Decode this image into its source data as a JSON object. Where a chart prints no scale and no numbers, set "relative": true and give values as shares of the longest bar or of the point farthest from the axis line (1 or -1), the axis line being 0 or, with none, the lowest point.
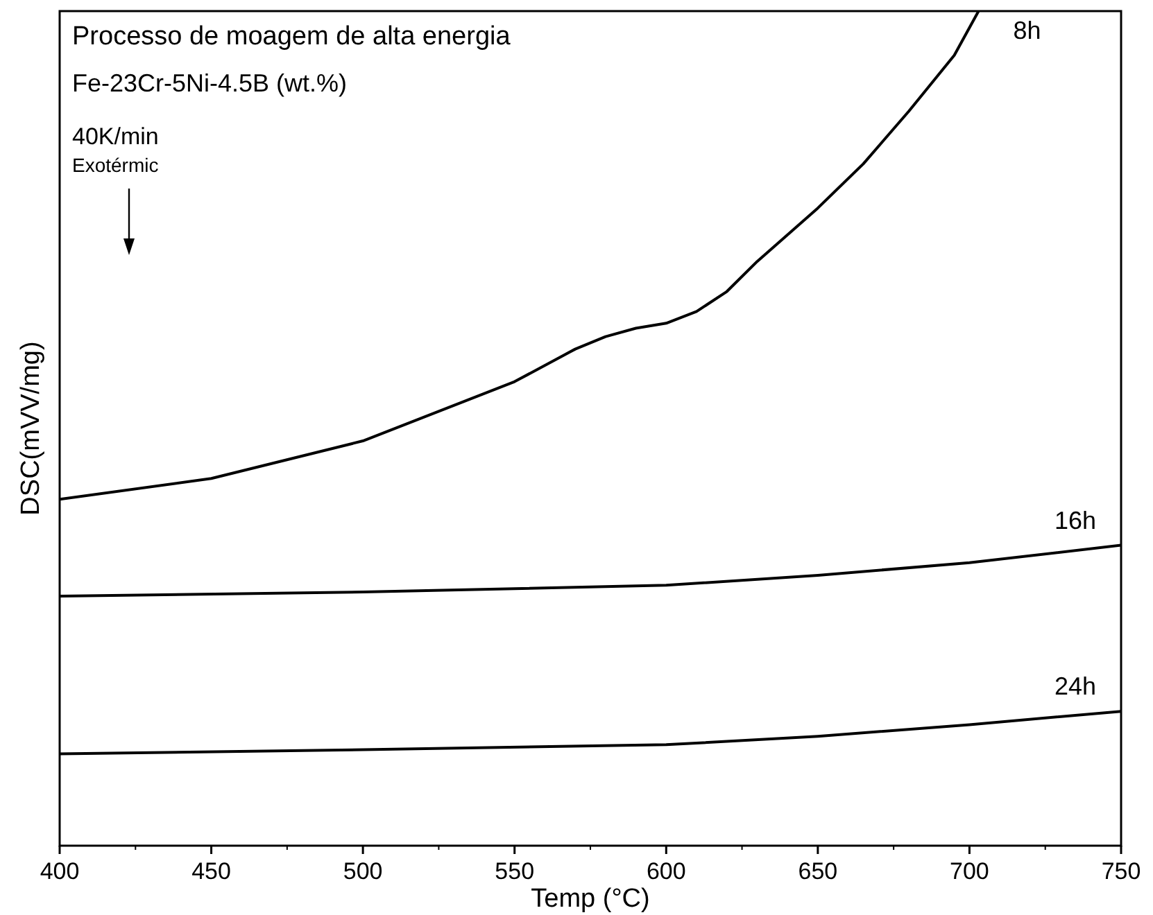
{
  "chart_data": {
    "type": "line",
    "relative": true,
    "title": "Processo de moagem de alta energia",
    "subtitle": "Fe-23Cr-5Ni-4.5B (wt.%)",
    "annotations": [
      "40K/min",
      "Exotérmic"
    ],
    "xlabel": "Temp (°C)",
    "ylabel": "DSC(mVV/mg)",
    "xlim": [
      400,
      750
    ],
    "xticks": [
      400,
      450,
      500,
      550,
      600,
      650,
      700,
      750
    ],
    "marker": "none",
    "legend": false,
    "line_style": "solid",
    "series": [
      {
        "name": "8h",
        "color": "#000000",
        "x": [
          400,
          450,
          500,
          550,
          570,
          580,
          590,
          600,
          610,
          620,
          630,
          650,
          665,
          680,
          695,
          703
        ],
        "values": [
          0.415,
          0.44,
          0.485,
          0.556,
          0.595,
          0.61,
          0.62,
          0.626,
          0.64,
          0.664,
          0.7,
          0.764,
          0.817,
          0.88,
          0.947,
          1
        ]
      },
      {
        "name": "16h",
        "color": "#000000",
        "x": [
          400,
          500,
          600,
          650,
          700,
          750
        ],
        "values": [
          0.299,
          0.304,
          0.312,
          0.324,
          0.339,
          0.36
        ]
      },
      {
        "name": "24h",
        "color": "#000000",
        "x": [
          400,
          500,
          600,
          650,
          700,
          750
        ],
        "values": [
          0.11,
          0.115,
          0.121,
          0.131,
          0.145,
          0.161
        ]
      }
    ]
  }
}
